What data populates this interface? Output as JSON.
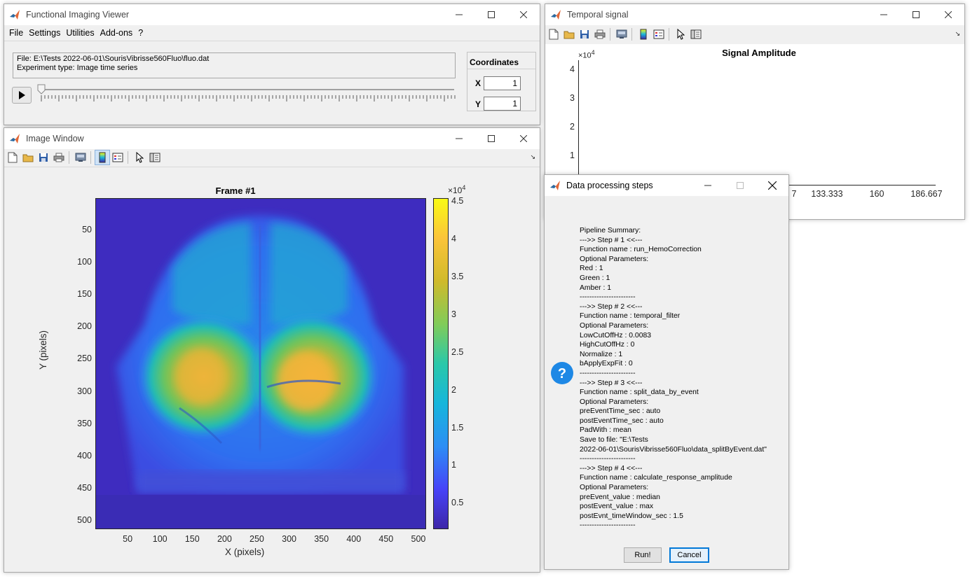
{
  "main_window": {
    "title": "Functional Imaging Viewer",
    "menu": [
      "File",
      "Settings",
      "Utilities",
      "Add-ons",
      "?"
    ],
    "file_line": "File: E:\\Tests 2022-06-01\\SourisVibrisse560Fluo\\fluo.dat",
    "experiment_line": "Experiment type: Image time series",
    "coordinates": {
      "header": "Coordinates",
      "x_label": "X",
      "x_value": "1",
      "y_label": "Y",
      "y_value": "1"
    },
    "slider_fraction": 0
  },
  "image_window": {
    "title": "Image Window",
    "plot_title": "Frame #1",
    "xlabel": "X (pixels)",
    "ylabel": "Y (pixels)",
    "xticks": [
      "50",
      "100",
      "150",
      "200",
      "250",
      "300",
      "350",
      "400",
      "450",
      "500"
    ],
    "yticks": [
      "50",
      "100",
      "150",
      "200",
      "250",
      "300",
      "350",
      "400",
      "450",
      "500"
    ],
    "colorbar_exponent_base": "×10",
    "colorbar_exponent": "4",
    "colorbar_ticks": [
      "4.5",
      "4",
      "3.5",
      "3",
      "2.5",
      "2",
      "1.5",
      "1",
      "0.5"
    ],
    "colormap": [
      "#3e26a8",
      "#4743f8",
      "#2d8ef5",
      "#17b6db",
      "#2ac8a9",
      "#81cc59",
      "#d0ba2b",
      "#fbc43a",
      "#f9fb15"
    ]
  },
  "temporal_window": {
    "title": "Temporal signal",
    "plot_title": "Signal Amplitude",
    "exponent_base": "×10",
    "exponent": "4",
    "yticks": [
      "4",
      "3",
      "2",
      "1"
    ],
    "xticks": [
      "7",
      "133.333",
      "160",
      "186.667"
    ]
  },
  "dialog": {
    "title": "Data processing steps",
    "lines": [
      "Pipeline Summary:",
      "--->> Step # 1 <<---",
      "Function name : run_HemoCorrection",
      "Optional Parameters:",
      "Red : 1",
      "Green : 1",
      "Amber : 1",
      "-----------------------",
      "--->> Step # 2 <<---",
      "Function name : temporal_filter",
      "Optional Parameters:",
      "LowCutOffHz : 0.0083",
      "HighCutOffHz : 0",
      "Normalize : 1",
      "bApplyExpFit : 0",
      "-----------------------",
      "--->> Step # 3 <<---",
      "Function name : split_data_by_event",
      "Optional Parameters:",
      "preEventTime_sec : auto",
      "postEventTime_sec : auto",
      "PadWith : mean",
      "Save to file: \"E:\\Tests",
      "2022-06-01\\SourisVibrisse560Fluo\\data_splitByEvent.dat\"",
      "-----------------------",
      "--->> Step # 4 <<---",
      "Function name : calculate_response_amplitude",
      "Optional Parameters:",
      "preEvent_value : median",
      "postEvent_value : max",
      "postEvnt_timeWindow_sec : 1.5",
      "-----------------------"
    ],
    "run_label": "Run!",
    "cancel_label": "Cancel"
  },
  "colors": {
    "title_bg": "#ffffff",
    "window_bg": "#f0f0f0",
    "question_icon": "#1e88e5",
    "button_focus": "#0078d7"
  }
}
